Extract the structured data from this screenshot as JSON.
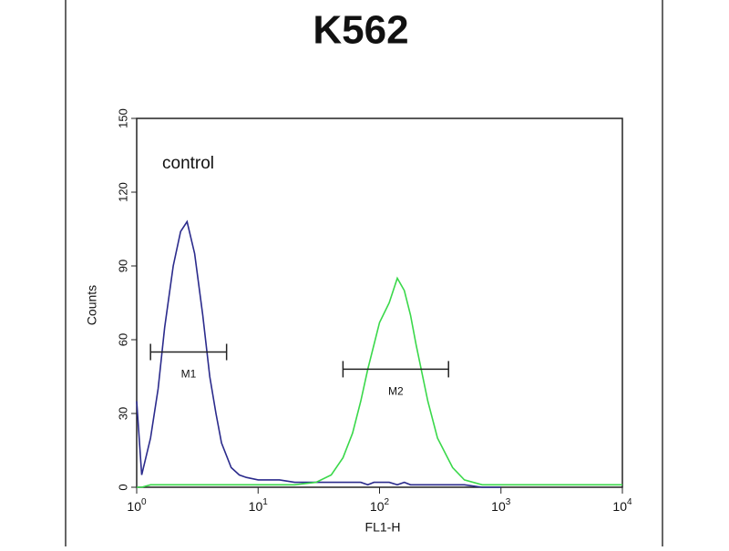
{
  "chart_data": {
    "type": "line",
    "title": "K562",
    "x_label": "FL1-H",
    "y_label": "Counts",
    "annotation": "control",
    "x_scale": "log",
    "x": [
      1,
      1.1,
      1.3,
      1.5,
      1.7,
      2,
      2.3,
      2.6,
      3,
      3.5,
      4,
      4.5,
      5,
      6,
      7,
      8,
      10,
      15,
      20,
      30,
      40,
      50,
      60,
      70,
      80,
      90,
      100,
      120,
      140,
      160,
      180,
      200,
      250,
      300,
      400,
      500,
      700,
      1000,
      2000,
      5000,
      10000
    ],
    "series": [
      {
        "color": "#2b2b8c",
        "values": [
          35,
          5,
          20,
          40,
          65,
          90,
          104,
          108,
          95,
          70,
          45,
          30,
          18,
          8,
          5,
          4,
          3,
          3,
          2,
          2,
          2,
          2,
          2,
          2,
          1,
          2,
          2,
          2,
          1,
          2,
          1,
          1,
          1,
          1,
          1,
          1,
          0,
          0,
          null,
          null,
          null
        ]
      },
      {
        "color": "#3ad84a",
        "values": [
          0,
          0,
          1,
          1,
          1,
          1,
          1,
          1,
          1,
          1,
          1,
          1,
          1,
          1,
          1,
          1,
          1,
          1,
          1,
          2,
          5,
          12,
          22,
          35,
          48,
          58,
          67,
          75,
          85,
          80,
          70,
          58,
          35,
          20,
          8,
          3,
          1,
          1,
          1,
          1,
          1
        ]
      }
    ],
    "markers": [
      {
        "label": "M1",
        "x": [
          1.3,
          5.5
        ],
        "y": 55
      },
      {
        "label": "M2",
        "x": [
          50,
          370
        ],
        "y": 48
      }
    ],
    "xlim": [
      1,
      10000
    ],
    "ylim": [
      0,
      150
    ],
    "xticks": [
      {
        "value": 1,
        "label": "10",
        "exponent": "0"
      },
      {
        "value": 10,
        "label": "10",
        "exponent": "1"
      },
      {
        "value": 100,
        "label": "10",
        "exponent": "2"
      },
      {
        "value": 1000,
        "label": "10",
        "exponent": "3"
      },
      {
        "value": 10000,
        "label": "10",
        "exponent": "4"
      }
    ],
    "yticks": [
      0,
      30,
      60,
      90,
      120,
      150
    ]
  }
}
